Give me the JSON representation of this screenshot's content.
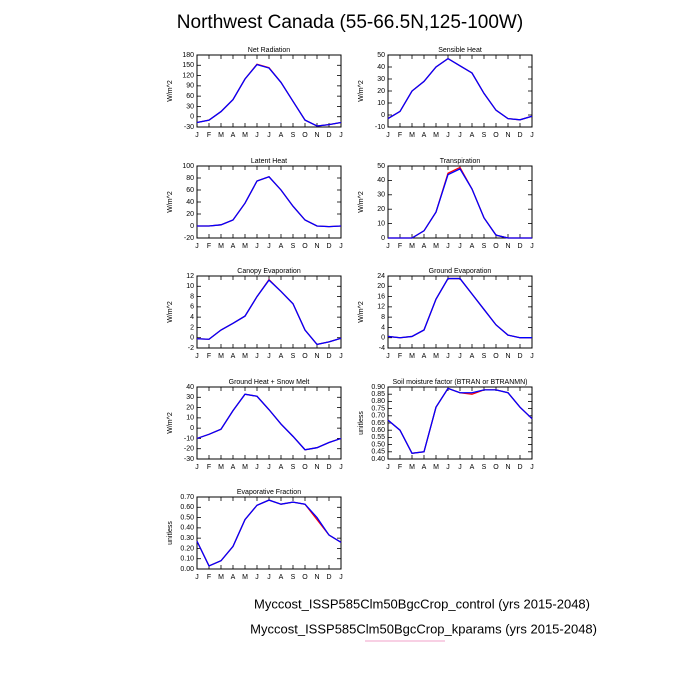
{
  "title": "Northwest Canada (55-66.5N,125-100W)",
  "legend": [
    {
      "name": "Myccost_ISSP585Clm50BgcCrop_control (yrs 2015-2048)",
      "color": "#ff0000"
    },
    {
      "name": "Myccost_ISSP585Clm50BgcCrop_kparams (yrs 2015-2048)",
      "color": "#0000ff"
    }
  ],
  "chart_data": [
    {
      "type": "line",
      "title": "Net Radiation",
      "y_label": "W/m^2",
      "categories": [
        "J",
        "F",
        "M",
        "A",
        "M",
        "J",
        "J",
        "A",
        "S",
        "O",
        "N",
        "D",
        "J"
      ],
      "ylim": [
        -30,
        180
      ],
      "yticks": [
        -30,
        0,
        30,
        60,
        90,
        120,
        150,
        180
      ],
      "series": [
        {
          "values": [
            -17,
            -10,
            15,
            50,
            110,
            153,
            143,
            100,
            45,
            -10,
            -27,
            -23,
            -17
          ]
        },
        {
          "values": [
            -17,
            -10,
            15,
            50,
            110,
            152,
            142,
            100,
            45,
            -10,
            -27,
            -23,
            -17
          ]
        }
      ]
    },
    {
      "type": "line",
      "title": "Sensible Heat",
      "y_label": "W/m^2",
      "categories": [
        "J",
        "F",
        "M",
        "A",
        "M",
        "J",
        "J",
        "A",
        "S",
        "O",
        "N",
        "D",
        "J"
      ],
      "ylim": [
        -10,
        50
      ],
      "yticks": [
        -10,
        0,
        10,
        20,
        30,
        40,
        50
      ],
      "series": [
        {
          "values": [
            -3,
            3,
            20,
            28,
            40,
            47,
            41,
            35,
            18,
            4,
            -3,
            -4,
            -1
          ]
        },
        {
          "values": [
            -3,
            3,
            20,
            28,
            40,
            47,
            41,
            35,
            18,
            4,
            -3,
            -4,
            -1
          ]
        }
      ]
    },
    {
      "type": "line",
      "title": "Latent Heat",
      "y_label": "W/m^2",
      "categories": [
        "J",
        "F",
        "M",
        "A",
        "M",
        "J",
        "J",
        "A",
        "S",
        "O",
        "N",
        "D",
        "J"
      ],
      "ylim": [
        -20,
        100
      ],
      "yticks": [
        -20,
        0,
        20,
        40,
        60,
        80,
        100
      ],
      "series": [
        {
          "values": [
            0,
            0,
            2,
            10,
            38,
            75,
            82,
            60,
            33,
            10,
            0,
            -1,
            0
          ]
        },
        {
          "values": [
            0,
            0,
            2,
            10,
            38,
            75,
            82,
            60,
            33,
            10,
            0,
            -1,
            0
          ]
        }
      ]
    },
    {
      "type": "line",
      "title": "Transpiration",
      "y_label": "W/m^2",
      "categories": [
        "J",
        "F",
        "M",
        "A",
        "M",
        "J",
        "J",
        "A",
        "S",
        "O",
        "N",
        "D",
        "J"
      ],
      "ylim": [
        0,
        50
      ],
      "yticks": [
        0,
        10,
        20,
        30,
        40,
        50
      ],
      "series": [
        {
          "values": [
            0,
            0,
            0,
            5,
            18,
            45,
            49,
            34,
            14,
            2,
            0,
            0,
            0
          ]
        },
        {
          "values": [
            0,
            0,
            0,
            5,
            18,
            44,
            48,
            34,
            14,
            2,
            0,
            0,
            0
          ]
        }
      ]
    },
    {
      "type": "line",
      "title": "Canopy Evaporation",
      "y_label": "W/m^2",
      "categories": [
        "J",
        "F",
        "M",
        "A",
        "M",
        "J",
        "J",
        "A",
        "S",
        "O",
        "N",
        "D",
        "J"
      ],
      "ylim": [
        -2,
        12
      ],
      "yticks": [
        -2,
        0,
        2,
        4,
        6,
        8,
        10,
        12
      ],
      "series": [
        {
          "values": [
            -0.2,
            -0.3,
            1.5,
            2.8,
            4.2,
            8,
            11.3,
            9,
            6.6,
            1.5,
            -1.3,
            -0.8,
            -0.1
          ]
        },
        {
          "values": [
            -0.2,
            -0.3,
            1.5,
            2.8,
            4.2,
            8,
            11.2,
            9,
            6.6,
            1.5,
            -1.3,
            -0.8,
            -0.1
          ]
        }
      ]
    },
    {
      "type": "line",
      "title": "Ground Evaporation",
      "y_label": "W/m^2",
      "categories": [
        "J",
        "F",
        "M",
        "A",
        "M",
        "J",
        "J",
        "A",
        "S",
        "O",
        "N",
        "D",
        "J"
      ],
      "ylim": [
        -4,
        24
      ],
      "yticks": [
        -4,
        0,
        4,
        8,
        12,
        16,
        20,
        24
      ],
      "series": [
        {
          "values": [
            0.5,
            0,
            0.5,
            3,
            15,
            23,
            23,
            17,
            11,
            5,
            1,
            0,
            0
          ]
        },
        {
          "values": [
            0.5,
            0,
            0.5,
            3,
            15,
            23,
            23,
            17,
            11,
            5,
            1,
            0,
            0
          ]
        }
      ]
    },
    {
      "type": "line",
      "title": "Ground Heat + Snow Melt",
      "y_label": "W/m^2",
      "categories": [
        "J",
        "F",
        "M",
        "A",
        "M",
        "J",
        "J",
        "A",
        "S",
        "O",
        "N",
        "D",
        "J"
      ],
      "ylim": [
        -30,
        40
      ],
      "yticks": [
        -30,
        -20,
        -10,
        0,
        10,
        20,
        30,
        40
      ],
      "series": [
        {
          "values": [
            -10,
            -6,
            -1,
            17,
            33,
            31,
            18,
            4,
            -8,
            -21,
            -19,
            -14,
            -10
          ]
        },
        {
          "values": [
            -10,
            -6,
            -1,
            17,
            33,
            31,
            18,
            4,
            -8,
            -21,
            -19,
            -14,
            -10
          ]
        }
      ]
    },
    {
      "type": "line",
      "title": "Soil moisture factor (BTRAN or BTRANMN)",
      "y_label": "unitless",
      "categories": [
        "J",
        "F",
        "M",
        "A",
        "M",
        "J",
        "J",
        "A",
        "S",
        "O",
        "N",
        "D",
        "J"
      ],
      "ylim": [
        0.4,
        0.9
      ],
      "yticks": [
        {
          "value": 0.4,
          "label": "0.40"
        },
        {
          "value": 0.45,
          "label": "0.45"
        },
        {
          "value": 0.5,
          "label": "0.50"
        },
        {
          "value": 0.55,
          "label": "0.55"
        },
        {
          "value": 0.6,
          "label": "0.60"
        },
        {
          "value": 0.65,
          "label": "0.65"
        },
        {
          "value": 0.7,
          "label": "0.70"
        },
        {
          "value": 0.75,
          "label": "0.75"
        },
        {
          "value": 0.8,
          "label": "0.80"
        },
        {
          "value": 0.85,
          "label": "0.85"
        },
        {
          "value": 0.9,
          "label": "0.90"
        }
      ],
      "series": [
        {
          "values": [
            0.67,
            0.6,
            0.44,
            0.45,
            0.76,
            0.89,
            0.86,
            0.85,
            0.88,
            0.88,
            0.86,
            0.76,
            0.68
          ]
        },
        {
          "values": [
            0.67,
            0.6,
            0.44,
            0.45,
            0.76,
            0.89,
            0.86,
            0.86,
            0.88,
            0.88,
            0.86,
            0.76,
            0.68
          ]
        }
      ]
    },
    {
      "type": "line",
      "title": "Evaporative Fraction",
      "y_label": "unitless",
      "categories": [
        "J",
        "F",
        "M",
        "A",
        "M",
        "J",
        "J",
        "A",
        "S",
        "O",
        "N",
        "D",
        "J"
      ],
      "ylim": [
        0,
        0.7
      ],
      "yticks": [
        {
          "value": 0,
          "label": "0.00"
        },
        {
          "value": 0.1,
          "label": "0.10"
        },
        {
          "value": 0.2,
          "label": "0.20"
        },
        {
          "value": 0.3,
          "label": "0.30"
        },
        {
          "value": 0.4,
          "label": "0.40"
        },
        {
          "value": 0.5,
          "label": "0.50"
        },
        {
          "value": 0.6,
          "label": "0.60"
        },
        {
          "value": 0.7,
          "label": "0.70"
        }
      ],
      "series": [
        {
          "values": [
            0.27,
            0.03,
            0.08,
            0.22,
            0.48,
            0.62,
            0.67,
            0.63,
            0.65,
            0.63,
            0.48,
            0.33,
            0.26
          ]
        },
        {
          "values": [
            0.27,
            0.03,
            0.08,
            0.22,
            0.48,
            0.62,
            0.67,
            0.63,
            0.65,
            0.63,
            0.5,
            0.33,
            0.26
          ]
        }
      ]
    }
  ]
}
